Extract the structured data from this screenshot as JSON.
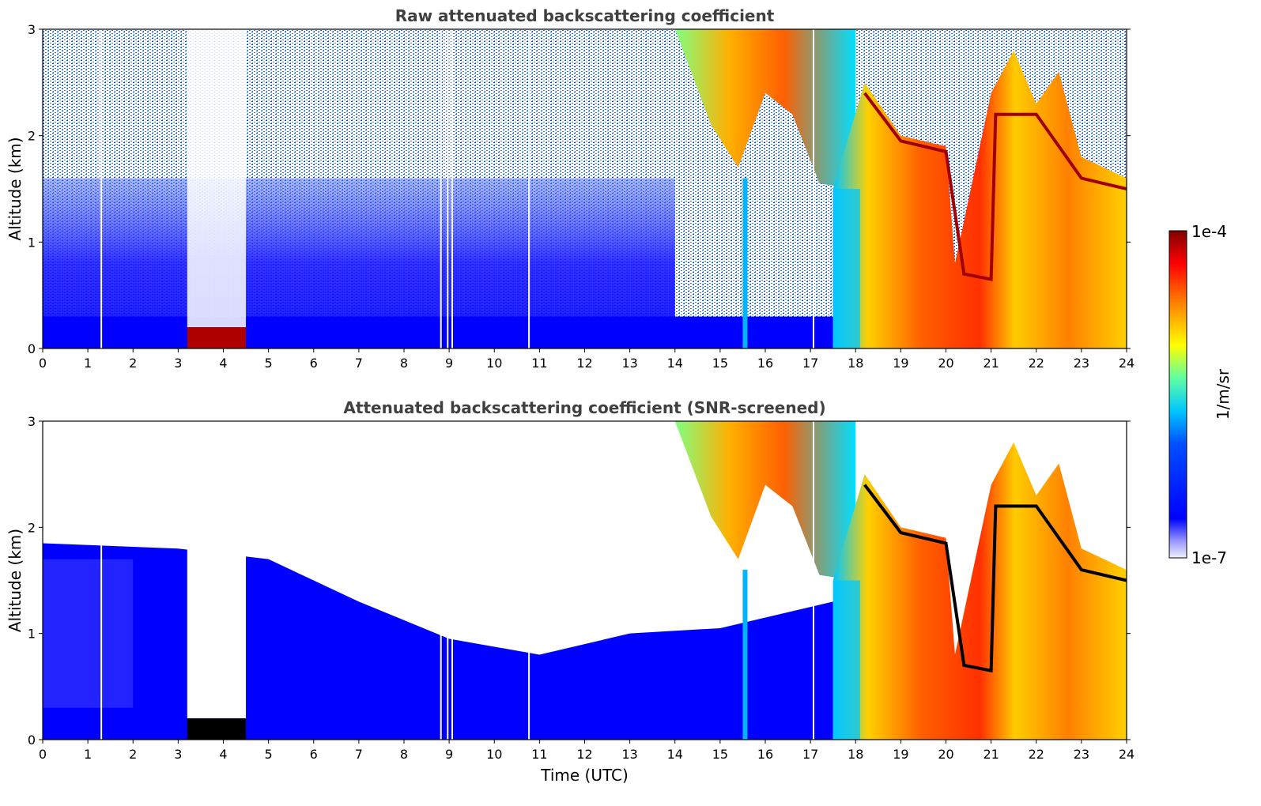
{
  "chart_data": [
    {
      "type": "heatmap",
      "title": "Raw attenuated backscattering coefficient",
      "xlabel": "",
      "ylabel": "Altitude (km)",
      "xlim": [
        0,
        24
      ],
      "ylim": [
        0,
        3
      ],
      "xticks": [
        "0",
        "1",
        "2",
        "3",
        "4",
        "5",
        "6",
        "7",
        "8",
        "9",
        "10",
        "11",
        "12",
        "13",
        "14",
        "15",
        "16",
        "17",
        "18",
        "19",
        "20",
        "21",
        "22",
        "23",
        "24"
      ],
      "yticks": [
        "0",
        "1",
        "2",
        "3"
      ],
      "value_range": [
        1e-07,
        0.0001
      ],
      "log_scale": true,
      "screened": false,
      "features": [
        {
          "name": "near-surface layer",
          "x": [
            0,
            24
          ],
          "y": [
            0,
            0.3
          ]
        },
        {
          "name": "noise gap",
          "x": [
            3.2,
            4.5
          ],
          "y": [
            0.2,
            3.0
          ]
        },
        {
          "name": "strong low layer",
          "x": [
            3.2,
            4.5
          ],
          "y": [
            0.0,
            0.2
          ]
        },
        {
          "name": "upper cloud",
          "x": [
            14.0,
            18.0
          ],
          "y": [
            1.5,
            3.0
          ]
        },
        {
          "name": "thick cloud",
          "x": [
            17.5,
            24.0
          ],
          "y": [
            0.0,
            2.0
          ]
        }
      ]
    },
    {
      "type": "heatmap",
      "title": "Attenuated backscattering coefficient (SNR-screened)",
      "xlabel": "Time (UTC)",
      "ylabel": "Altitude (km)",
      "xlim": [
        0,
        24
      ],
      "ylim": [
        0,
        3
      ],
      "xticks": [
        "0",
        "1",
        "2",
        "3",
        "4",
        "5",
        "6",
        "7",
        "8",
        "9",
        "10",
        "11",
        "12",
        "13",
        "14",
        "15",
        "16",
        "17",
        "18",
        "19",
        "20",
        "21",
        "22",
        "23",
        "24"
      ],
      "yticks": [
        "0",
        "1",
        "2",
        "3"
      ],
      "value_range": [
        1e-07,
        0.0001
      ],
      "log_scale": true,
      "screened": true,
      "features": [
        {
          "name": "boundary layer",
          "x": [
            0,
            24
          ],
          "y": [
            0,
            1.8
          ]
        },
        {
          "name": "screened gap",
          "x": [
            3.2,
            4.5
          ],
          "y": [
            0.2,
            3.0
          ]
        },
        {
          "name": "upper cloud",
          "x": [
            14.0,
            18.0
          ],
          "y": [
            1.5,
            3.0
          ]
        },
        {
          "name": "thick cloud",
          "x": [
            17.5,
            24.0
          ],
          "y": [
            0.0,
            2.0
          ]
        }
      ]
    }
  ],
  "colorbar": {
    "label": "1/m/sr",
    "max_label": "1e-4",
    "min_label": "1e-7",
    "colors": [
      "#f0f0fa",
      "#8c8cff",
      "#0000ff",
      "#0080ff",
      "#00e0ff",
      "#80ff80",
      "#ffff00",
      "#ff8000",
      "#ff0000",
      "#800000"
    ]
  }
}
